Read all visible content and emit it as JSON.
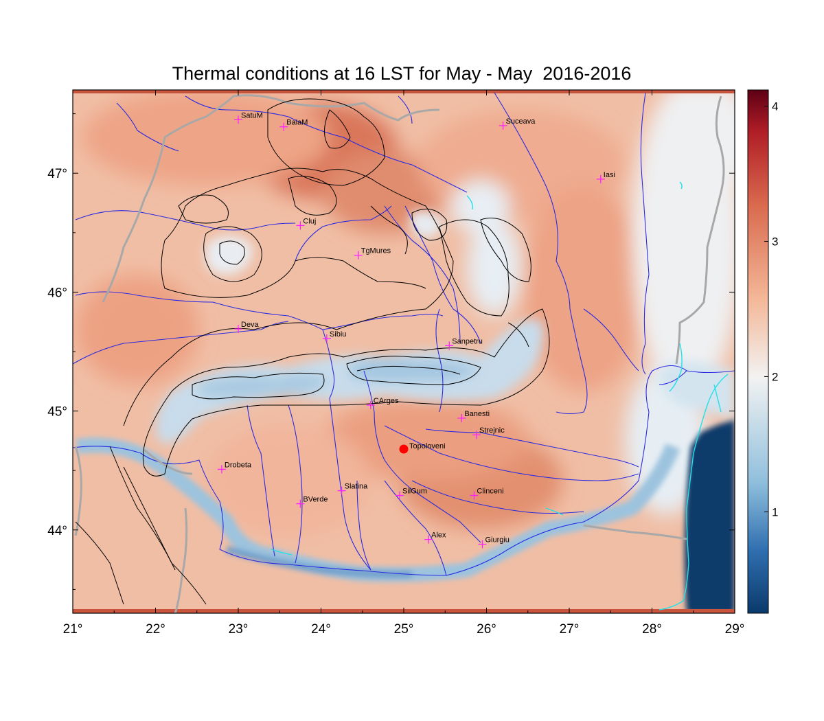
{
  "title": "Thermal conditions at 16 LST for May - May  2016-2016",
  "x_axis": {
    "range": [
      21,
      29
    ],
    "ticks": [
      21,
      22,
      23,
      24,
      25,
      26,
      27,
      28,
      29
    ],
    "tick_labels": [
      "21°",
      "22°",
      "23°",
      "24°",
      "25°",
      "26°",
      "27°",
      "28°",
      "29°"
    ]
  },
  "y_axis": {
    "range": [
      43.3,
      47.7
    ],
    "ticks": [
      44,
      45,
      46,
      47
    ],
    "tick_labels": [
      "44°",
      "45°",
      "46°",
      "47°"
    ]
  },
  "colorbar": {
    "range": [
      0.25,
      4.12
    ],
    "ticks": [
      1,
      2,
      3,
      4
    ],
    "tick_labels": [
      "1",
      "2",
      "3",
      "4"
    ],
    "colors": [
      "#0b3a6b",
      "#2f6fb0",
      "#8fbfdc",
      "#f2f2f2",
      "#f4b898",
      "#d96a4e",
      "#b01e26",
      "#5e0015"
    ]
  },
  "stations": [
    {
      "name": "SatuM",
      "lon": 23.0,
      "lat": 47.45
    },
    {
      "name": "BaiaM",
      "lon": 23.55,
      "lat": 47.39
    },
    {
      "name": "Suceava",
      "lon": 26.2,
      "lat": 47.4
    },
    {
      "name": "Iasi",
      "lon": 27.38,
      "lat": 46.95
    },
    {
      "name": "Cluj",
      "lon": 23.75,
      "lat": 46.56
    },
    {
      "name": "TgMures",
      "lon": 24.45,
      "lat": 46.31
    },
    {
      "name": "Deva",
      "lon": 23.0,
      "lat": 45.69
    },
    {
      "name": "Sibiu",
      "lon": 24.07,
      "lat": 45.61
    },
    {
      "name": "Sanpetru",
      "lon": 25.55,
      "lat": 45.55
    },
    {
      "name": "CArges",
      "lon": 24.6,
      "lat": 45.05
    },
    {
      "name": "Banesti",
      "lon": 25.7,
      "lat": 44.94
    },
    {
      "name": "Strejnic",
      "lon": 25.88,
      "lat": 44.8
    },
    {
      "name": "Drobeta",
      "lon": 22.8,
      "lat": 44.51
    },
    {
      "name": "Slatina",
      "lon": 24.25,
      "lat": 44.33
    },
    {
      "name": "SilGum",
      "lon": 24.95,
      "lat": 44.29
    },
    {
      "name": "BVerde",
      "lon": 23.75,
      "lat": 44.22
    },
    {
      "name": "Clinceni",
      "lon": 25.85,
      "lat": 44.29
    },
    {
      "name": "Alex",
      "lon": 25.3,
      "lat": 43.92
    },
    {
      "name": "Giurgiu",
      "lon": 25.95,
      "lat": 43.88
    }
  ],
  "highlight": {
    "name": "Topoloveni",
    "lon": 25.0,
    "lat": 44.68,
    "color": "#ff0000"
  }
}
